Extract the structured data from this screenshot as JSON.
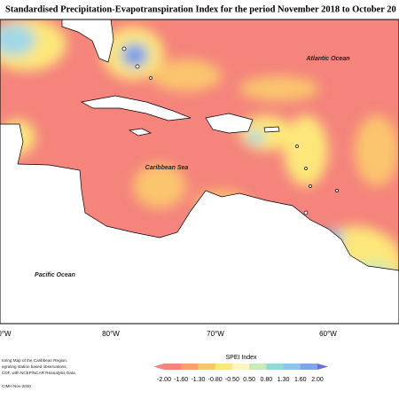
{
  "map": {
    "title": "Standardised Precipitation-Evapotranspiration Index for the period November 2018 to October 20",
    "labels": [
      "Atlantic Ocean",
      "Caribbean Sea",
      "Pacific Ocean"
    ],
    "longitudes": [
      "0°W",
      "80°W",
      "70°W",
      "60°W"
    ],
    "legend": {
      "title": "SPEI Index",
      "ticks": [
        "-2.00",
        "-1.60",
        "-1.30",
        "-0.80",
        "-0.50",
        "0.50",
        "0.80",
        "1.30",
        "1.60",
        "2.00"
      ]
    },
    "notes": [
      "toring Map of the Caribbean Region.",
      "egrating station based observations,",
      "CDF, with NCEP/NCAR Reanalysis Data",
      "CIMH Nov-2020"
    ]
  }
}
